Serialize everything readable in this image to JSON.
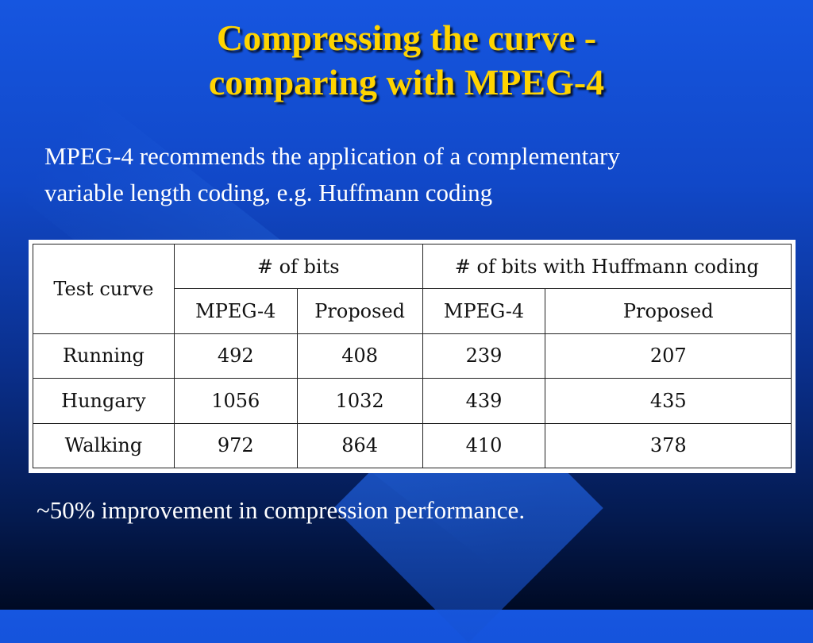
{
  "slide": {
    "title_line1": "Compressing the curve -",
    "title_line2": "comparing with MPEG-4",
    "intro_line1": "MPEG-4 recommends the application of a complementary",
    "intro_line2": "variable length coding, e.g. Huffmann coding",
    "footer": "~50% improvement in compression performance."
  },
  "table": {
    "corner": "Test curve",
    "group_headers": [
      "# of bits",
      "# of bits with Huffmann coding"
    ],
    "sub_headers": [
      "MPEG-4",
      "Proposed",
      "MPEG-4",
      "Proposed"
    ],
    "rows": [
      {
        "label": "Running",
        "values": [
          "492",
          "408",
          "239",
          "207"
        ]
      },
      {
        "label": "Hungary",
        "values": [
          "1056",
          "1032",
          "439",
          "435"
        ]
      },
      {
        "label": "Walking",
        "values": [
          "972",
          "864",
          "410",
          "378"
        ]
      }
    ]
  },
  "colors": {
    "title": "#ffd400",
    "text": "#ffffff",
    "background_top": "#1656e0",
    "background_bottom": "#000a24"
  }
}
